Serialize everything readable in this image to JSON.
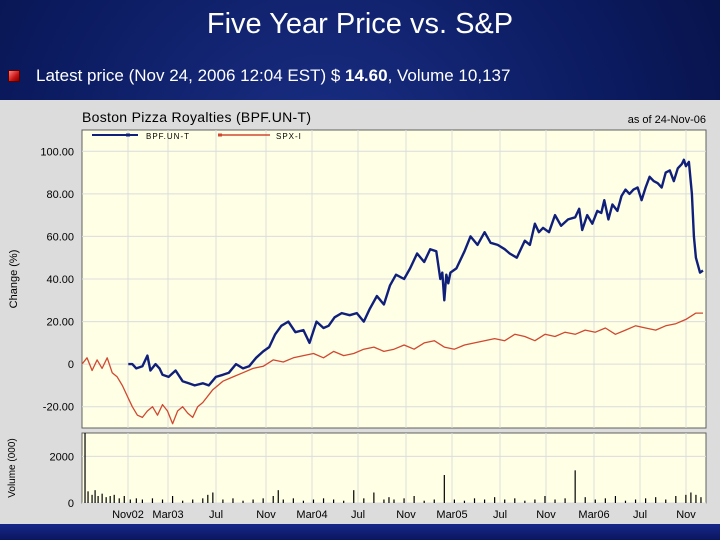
{
  "slide": {
    "title": "Five Year Price vs. S&P",
    "bullet_prefix": "Latest price (Nov 24, 2006 12:04 EST) $ ",
    "price": "14.60",
    "bullet_suffix": ", Volume 10,137"
  },
  "colors": {
    "background": "#0b1a5e",
    "panel": "#ffffe6",
    "grid": "#dcdcdc",
    "bpf_line": "#10207a",
    "spx_line": "#d04830",
    "volume_bars": "#000000"
  },
  "chart_data": [
    {
      "type": "line",
      "title": "Boston Pizza Royalties (BPF.UN-T)",
      "subtitle": "as of 24-Nov-06",
      "ylabel": "Change (%)",
      "ylim": [
        -30,
        110
      ],
      "yticks": [
        {
          "value": 100,
          "label": "100.00"
        },
        {
          "value": 80,
          "label": "80.00"
        },
        {
          "value": 60,
          "label": "60.00"
        },
        {
          "value": 40,
          "label": "40.00"
        },
        {
          "value": 20,
          "label": "20.00"
        },
        {
          "value": 0,
          "label": "0"
        },
        {
          "value": -20,
          "label": "-20.00"
        }
      ],
      "x_ticks": [
        "Nov02",
        "Mar03",
        "Jul",
        "Nov",
        "Mar04",
        "Jul",
        "Nov",
        "Mar05",
        "Jul",
        "Nov",
        "Mar06",
        "Jul",
        "Nov"
      ],
      "grid": true,
      "legend_position": "top-left",
      "series": [
        {
          "name": "BPF.UN-T",
          "x": [
            4.6,
            5.0,
            5.4,
            6.0,
            6.5,
            6.8,
            7.3,
            7.7,
            8.0,
            8.6,
            9.3,
            10.0,
            10.6,
            11.2,
            12.0,
            12.6,
            13.3,
            14.0,
            14.6,
            15.3,
            16.0,
            16.6,
            17.3,
            18.0,
            18.6,
            19.2,
            19.8,
            20.5,
            21.2,
            22.0,
            22.6,
            23.3,
            24.0,
            24.5,
            25.1,
            25.8,
            26.6,
            27.3,
            28.0,
            28.6,
            29.3,
            30.0,
            30.6,
            31.2,
            32.0,
            32.6,
            33.3,
            34.0,
            34.6,
            35.2,
            35.6,
            35.8,
            36.0,
            36.2,
            36.4,
            36.6,
            37.2,
            38.0,
            38.6,
            39.3,
            40.0,
            40.6,
            41.3,
            42.0,
            42.5,
            43.2,
            44.0,
            44.5,
            45.0,
            45.4,
            45.8,
            46.4,
            47.0,
            47.6,
            48.3,
            49.0,
            49.4,
            49.7,
            50.2,
            50.7,
            51.2,
            51.6,
            51.9,
            52.3,
            52.7,
            53.2,
            53.6,
            54.0,
            54.4,
            54.8,
            55.2,
            55.6,
            56.0,
            56.4,
            56.8,
            57.2,
            57.6,
            58.0,
            58.4,
            58.8,
            59.2,
            59.6,
            59.8,
            60.0,
            60.3,
            60.6,
            60.8,
            61.0,
            61.4,
            61.7
          ],
          "y": [
            0,
            0,
            -2,
            -1,
            4,
            -3,
            0,
            -2,
            -5,
            -6,
            -3,
            -8,
            -9,
            -10,
            -9,
            -10,
            -6,
            -5,
            -4,
            0,
            -2,
            -1,
            3,
            6,
            8,
            14,
            18,
            20,
            15,
            16,
            10,
            20,
            17,
            18,
            22,
            24,
            23,
            24,
            20,
            26,
            32,
            28,
            37,
            42,
            40,
            45,
            52,
            48,
            54,
            53,
            40,
            43,
            30,
            42,
            38,
            43,
            45,
            53,
            60,
            56,
            62,
            57,
            56,
            54,
            52,
            50,
            58,
            56,
            66,
            62,
            64,
            62,
            70,
            65,
            68,
            69,
            73,
            63,
            70,
            66,
            72,
            71,
            77,
            68,
            75,
            72,
            79,
            82,
            80,
            82,
            83,
            77,
            83,
            88,
            86,
            85,
            83,
            90,
            91,
            86,
            92,
            94,
            96,
            93,
            95,
            80,
            60,
            50,
            43,
            44
          ]
        },
        {
          "name": "SPX-I",
          "x": [
            0.0,
            0.5,
            1.0,
            1.5,
            2.0,
            2.5,
            3.0,
            3.5,
            4.0,
            4.5,
            5.0,
            5.5,
            6.0,
            6.5,
            7.0,
            7.5,
            8.0,
            8.5,
            9.0,
            9.5,
            10.0,
            10.5,
            11.0,
            11.5,
            12.0,
            13.0,
            14.0,
            15.0,
            16.0,
            17.0,
            18.0,
            19.0,
            20.0,
            21.0,
            22.0,
            23.0,
            24.0,
            25.0,
            26.0,
            27.0,
            28.0,
            29.0,
            30.0,
            31.0,
            32.0,
            33.0,
            34.0,
            35.0,
            36.0,
            37.0,
            38.0,
            39.0,
            40.0,
            41.0,
            42.0,
            43.0,
            44.0,
            45.0,
            46.0,
            47.0,
            48.0,
            49.0,
            50.0,
            51.0,
            52.0,
            53.0,
            54.0,
            55.0,
            56.0,
            57.0,
            58.0,
            59.0,
            60.0,
            61.0,
            61.7
          ],
          "y": [
            0,
            3,
            -3,
            2,
            -2,
            3,
            -4,
            -6,
            -10,
            -15,
            -20,
            -24,
            -25,
            -22,
            -20,
            -24,
            -19,
            -22,
            -28,
            -22,
            -20,
            -23,
            -25,
            -20,
            -18,
            -12,
            -8,
            -6,
            -4,
            -2,
            -1,
            2,
            1,
            3,
            4,
            5,
            3,
            6,
            4,
            5,
            7,
            8,
            6,
            7,
            9,
            7,
            10,
            11,
            8,
            7,
            9,
            10,
            11,
            12,
            11,
            14,
            13,
            11,
            14,
            13,
            15,
            14,
            16,
            15,
            17,
            14,
            16,
            18,
            17,
            16,
            18,
            19,
            21,
            24,
            24
          ]
        }
      ]
    },
    {
      "type": "bar",
      "ylabel": "Volume (000)",
      "ylim": [
        0,
        3000
      ],
      "yticks": [
        {
          "value": 2000,
          "label": "2000"
        },
        {
          "value": 0,
          "label": "0"
        }
      ],
      "series": [
        {
          "name": "",
          "x": [
            0.3,
            0.6,
            1.0,
            1.3,
            1.6,
            2.0,
            2.4,
            2.8,
            3.2,
            3.7,
            4.2,
            4.8,
            5.4,
            6.0,
            7.0,
            8.0,
            9.0,
            10.0,
            11.0,
            12.0,
            12.5,
            13.0,
            14.0,
            15.0,
            16.0,
            17.0,
            18.0,
            19.0,
            19.5,
            20.0,
            21.0,
            22.0,
            23.0,
            24.0,
            25.0,
            26.0,
            27.0,
            28.0,
            29.0,
            30.0,
            30.5,
            31.0,
            32.0,
            33.0,
            34.0,
            35.0,
            36.0,
            37.0,
            38.0,
            39.0,
            40.0,
            41.0,
            42.0,
            43.0,
            44.0,
            45.0,
            46.0,
            47.0,
            48.0,
            49.0,
            50.0,
            51.0,
            52.0,
            53.0,
            54.0,
            55.0,
            56.0,
            57.0,
            58.0,
            59.0,
            60.0,
            60.5,
            61.0,
            61.5
          ],
          "values": [
            3000,
            500,
            350,
            550,
            300,
            400,
            250,
            300,
            350,
            200,
            300,
            150,
            200,
            150,
            200,
            150,
            300,
            100,
            150,
            200,
            350,
            450,
            150,
            200,
            100,
            150,
            200,
            300,
            550,
            150,
            200,
            100,
            150,
            200,
            150,
            100,
            550,
            200,
            450,
            150,
            250,
            150,
            200,
            300,
            100,
            150,
            1200,
            150,
            100,
            200,
            150,
            250,
            150,
            200,
            100,
            150,
            300,
            150,
            200,
            1400,
            250,
            150,
            200,
            300,
            100,
            150,
            200,
            250,
            150,
            300,
            350,
            450,
            350,
            250
          ]
        }
      ]
    }
  ]
}
